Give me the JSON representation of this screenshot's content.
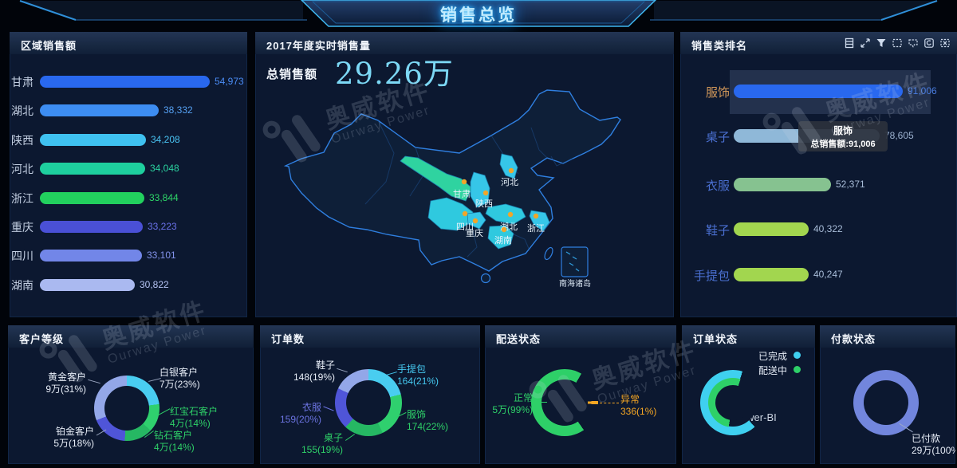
{
  "header": {
    "title": "销售总览"
  },
  "watermark": {
    "name": "奥威软件",
    "subtitle": "Ourway Power"
  },
  "colors": {
    "accent_cyan": "#3fd0f0",
    "accent_green": "#2ed068",
    "accent_orange": "#f5a623",
    "panel_bg": "#0c1830",
    "map_stroke": "#2f7fe0",
    "map_highlight": "#2fc9df"
  },
  "panels": {
    "region_sales": {
      "title": "区域销售额",
      "max": 54973,
      "items": [
        {
          "label": "甘肃",
          "value": 54973,
          "display": "54,973",
          "bar_color": "#2968ee",
          "text_color": "#4a8cf5"
        },
        {
          "label": "湖北",
          "value": 38332,
          "display": "38,332",
          "bar_color": "#3d8df2",
          "text_color": "#55a0f2"
        },
        {
          "label": "陕西",
          "value": 34208,
          "display": "34,208",
          "bar_color": "#3fc1f0",
          "text_color": "#49c3f2"
        },
        {
          "label": "河北",
          "value": 34048,
          "display": "34,048",
          "bar_color": "#1ecf9e",
          "text_color": "#2bd3a0"
        },
        {
          "label": "浙江",
          "value": 33844,
          "display": "33,844",
          "bar_color": "#22d05e",
          "text_color": "#2ed668"
        },
        {
          "label": "重庆",
          "value": 33223,
          "display": "33,223",
          "bar_color": "#4a50d6",
          "text_color": "#6a71e8"
        },
        {
          "label": "四川",
          "value": 33101,
          "display": "33,101",
          "bar_color": "#7286e8",
          "text_color": "#8494ec"
        },
        {
          "label": "湖南",
          "value": 30822,
          "display": "30,822",
          "bar_color": "#aab9f0",
          "text_color": "#b4c2f2"
        }
      ]
    },
    "realtime_sales": {
      "title": "2017年度实时销售量",
      "total_label": "总销售额",
      "total_value": "29.26万",
      "provinces": [
        "甘肃",
        "陕西",
        "河北",
        "四川",
        "重庆",
        "湖北",
        "湖南",
        "浙江"
      ],
      "islands_label": "南海诸岛"
    },
    "category_rank": {
      "title": "销售类排名",
      "max": 91006,
      "items": [
        {
          "label": "服饰",
          "value": 91006,
          "display": "91,006",
          "bar_color": "#2968ee",
          "text_color": "#4a7de0",
          "label_color": "#d59a5a",
          "highlight": true
        },
        {
          "label": "桌子",
          "value": 78605,
          "display": "78,605",
          "bar_color": "#8fb8d8",
          "text_color": "#9db2d0",
          "label_color": "#4a6fd0"
        },
        {
          "label": "衣服",
          "value": 52371,
          "display": "52,371",
          "bar_color": "#86c290",
          "text_color": "#a8bcd8",
          "label_color": "#4a6fd0"
        },
        {
          "label": "鞋子",
          "value": 40322,
          "display": "40,322",
          "bar_color": "#a2d64f",
          "text_color": "#a8bcd8",
          "label_color": "#4a6fd0"
        },
        {
          "label": "手提包",
          "value": 40247,
          "display": "40,247",
          "bar_color": "#a2d64f",
          "text_color": "#a8bcd8",
          "label_color": "#4a6fd0"
        }
      ],
      "tooltip": {
        "line1": "服饰",
        "line2": "总销售额:91,006"
      },
      "toolbar": [
        "table-icon",
        "expand-icon",
        "filter-icon",
        "marquee-select-icon",
        "lasso-select-icon",
        "refresh-icon",
        "clear-selection-icon"
      ]
    },
    "customer_level": {
      "title": "客户等级",
      "slices": [
        {
          "name": "白银客户",
          "display": "7万(23%)",
          "pct": 23,
          "color": "#49cdf0",
          "label_color": "#e8eef8"
        },
        {
          "name": "红宝石客户",
          "display": "4万(14%)",
          "pct": 14,
          "color": "#2fd06e",
          "label_color": "#2ed068"
        },
        {
          "name": "钻石客户",
          "display": "4万(14%)",
          "pct": 14,
          "color": "#26b863",
          "label_color": "#2ed068"
        },
        {
          "name": "铂金客户",
          "display": "5万(18%)",
          "pct": 18,
          "color": "#4f55d8",
          "label_color": "#e8eef8"
        },
        {
          "name": "黄金客户",
          "display": "9万(31%)",
          "pct": 31,
          "color": "#93a7e8",
          "label_color": "#e8eef8"
        }
      ]
    },
    "order_count": {
      "title": "订单数",
      "slices": [
        {
          "name": "手提包",
          "display": "164(21%)",
          "pct": 21,
          "color": "#49cdf0",
          "label_color": "#45c8f0"
        },
        {
          "name": "服饰",
          "display": "174(22%)",
          "pct": 22,
          "color": "#2fd06e",
          "label_color": "#2ed068"
        },
        {
          "name": "桌子",
          "display": "155(19%)",
          "pct": 19,
          "color": "#26b863",
          "label_color": "#2ed068"
        },
        {
          "name": "衣服",
          "display": "159(20%)",
          "pct": 20,
          "color": "#4f55d8",
          "label_color": "#6b73e0"
        },
        {
          "name": "鞋子",
          "display": "148(19%)",
          "pct": 19,
          "color": "#93a7e8",
          "label_color": "#e8eef8"
        }
      ]
    },
    "delivery_status": {
      "title": "配送状态",
      "slices": [
        {
          "name": "正常",
          "display": "5万(99%)",
          "pct": 99,
          "color": "#2ed068",
          "label_color": "#2ed068"
        },
        {
          "name": "异常",
          "display": "336(1%)",
          "pct": 1,
          "color": "#f5a623",
          "label_color": "#f5a623"
        }
      ]
    },
    "order_status": {
      "title": "订单状态",
      "legend": [
        {
          "label": "已完成",
          "color": "#3fd0f0"
        },
        {
          "label": "配送中",
          "color": "#2ed068"
        }
      ],
      "center_label": "Power-BI"
    },
    "payment_status": {
      "title": "付款状态",
      "slices": [
        {
          "name": "已付款",
          "display": "29万(100%)",
          "pct": 100,
          "color": "#7286dd",
          "label_color": "#e8eef8"
        }
      ]
    }
  },
  "chart_data": [
    {
      "type": "bar",
      "title": "区域销售额",
      "orientation": "horizontal",
      "categories": [
        "甘肃",
        "湖北",
        "陕西",
        "河北",
        "浙江",
        "重庆",
        "四川",
        "湖南"
      ],
      "values": [
        54973,
        38332,
        34208,
        34048,
        33844,
        33223,
        33101,
        30822
      ],
      "xlim": [
        0,
        54973
      ]
    },
    {
      "type": "map",
      "title": "2017年度实时销售量",
      "total_label": "总销售额",
      "total_value": "29.26万",
      "highlighted_regions": [
        "甘肃",
        "陕西",
        "河北",
        "四川",
        "重庆",
        "湖北",
        "湖南",
        "浙江"
      ],
      "annotation": "南海诸岛"
    },
    {
      "type": "bar",
      "title": "销售类排名",
      "orientation": "horizontal",
      "categories": [
        "服饰",
        "桌子",
        "衣服",
        "鞋子",
        "手提包"
      ],
      "values": [
        91006,
        78605,
        52371,
        40322,
        40247
      ],
      "tooltip": "服饰 总销售额:91,006",
      "xlim": [
        0,
        91006
      ]
    },
    {
      "type": "pie",
      "title": "客户等级",
      "labels": [
        "白银客户",
        "红宝石客户",
        "钻石客户",
        "铂金客户",
        "黄金客户"
      ],
      "values": [
        "7万",
        "4万",
        "4万",
        "5万",
        "9万"
      ],
      "percents": [
        23,
        14,
        14,
        18,
        31
      ]
    },
    {
      "type": "pie",
      "title": "订单数",
      "labels": [
        "手提包",
        "服饰",
        "桌子",
        "衣服",
        "鞋子"
      ],
      "values": [
        164,
        174,
        155,
        159,
        148
      ],
      "percents": [
        21,
        22,
        19,
        20,
        19
      ]
    },
    {
      "type": "pie",
      "title": "配送状态",
      "labels": [
        "正常",
        "异常"
      ],
      "values": [
        "5万",
        "336"
      ],
      "percents": [
        99,
        1
      ]
    },
    {
      "type": "pie",
      "title": "订单状态",
      "legend": [
        "已完成",
        "配送中"
      ],
      "center_label": "Power-BI"
    },
    {
      "type": "pie",
      "title": "付款状态",
      "labels": [
        "已付款"
      ],
      "values": [
        "29万"
      ],
      "percents": [
        100
      ]
    }
  ]
}
